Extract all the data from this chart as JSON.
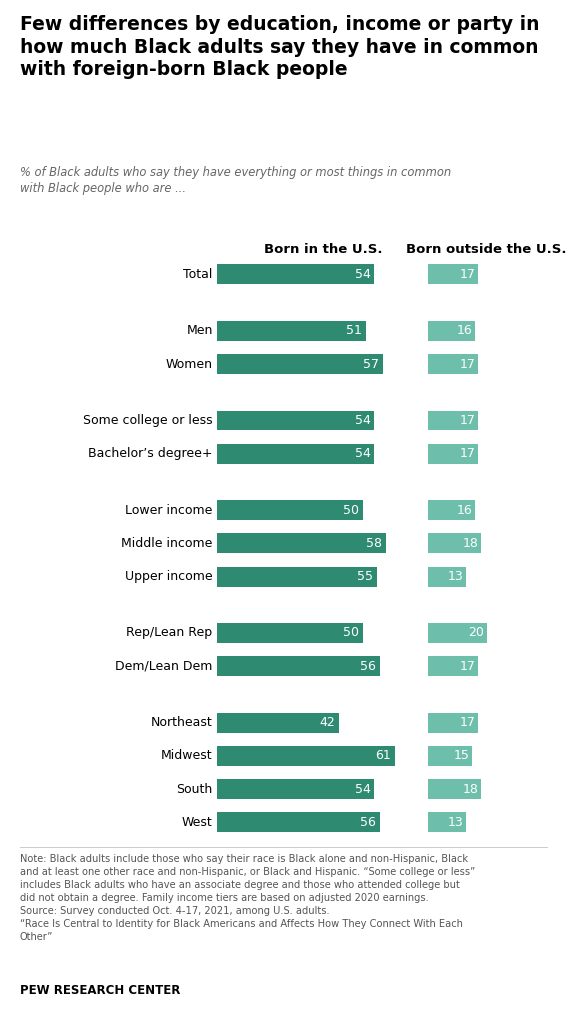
{
  "title": "Few differences by education, income or party in \nhow much Black adults say they have in common \nwith foreign-born Black people",
  "subtitle": "% of Black adults who say they have everything or most things in common\nwith Black people who are ...",
  "col1_header": "Born in the U.S.",
  "col2_header": "Born outside the U.S.",
  "categories": [
    "Total",
    "Men",
    "Women",
    "Some college or less",
    "Bachelor’s degree+",
    "Lower income",
    "Middle income",
    "Upper income",
    "Rep/Lean Rep",
    "Dem/Lean Dem",
    "Northeast",
    "Midwest",
    "South",
    "West"
  ],
  "values_us": [
    54,
    51,
    57,
    54,
    54,
    50,
    58,
    55,
    50,
    56,
    42,
    61,
    54,
    56
  ],
  "values_foreign": [
    17,
    16,
    17,
    17,
    17,
    16,
    18,
    13,
    20,
    17,
    17,
    15,
    18,
    13
  ],
  "color_us": "#2e8b72",
  "color_foreign": "#6dbfab",
  "note": "Note: Black adults include those who say their race is Black alone and non-Hispanic, Black\nand at least one other race and non-Hispanic, or Black and Hispanic. “Some college or less”\nincludes Black adults who have an associate degree and those who attended college but\ndid not obtain a degree. Family income tiers are based on adjusted 2020 earnings.\nSource: Survey conducted Oct. 4-17, 2021, among U.S. adults.\n“Race Is Central to Identity for Black Americans and Affects How They Connect With Each\nOther”",
  "source_label": "PEW RESEARCH CENTER",
  "group_starts": [
    0,
    1,
    3,
    5,
    8,
    10
  ],
  "max_us": 65
}
